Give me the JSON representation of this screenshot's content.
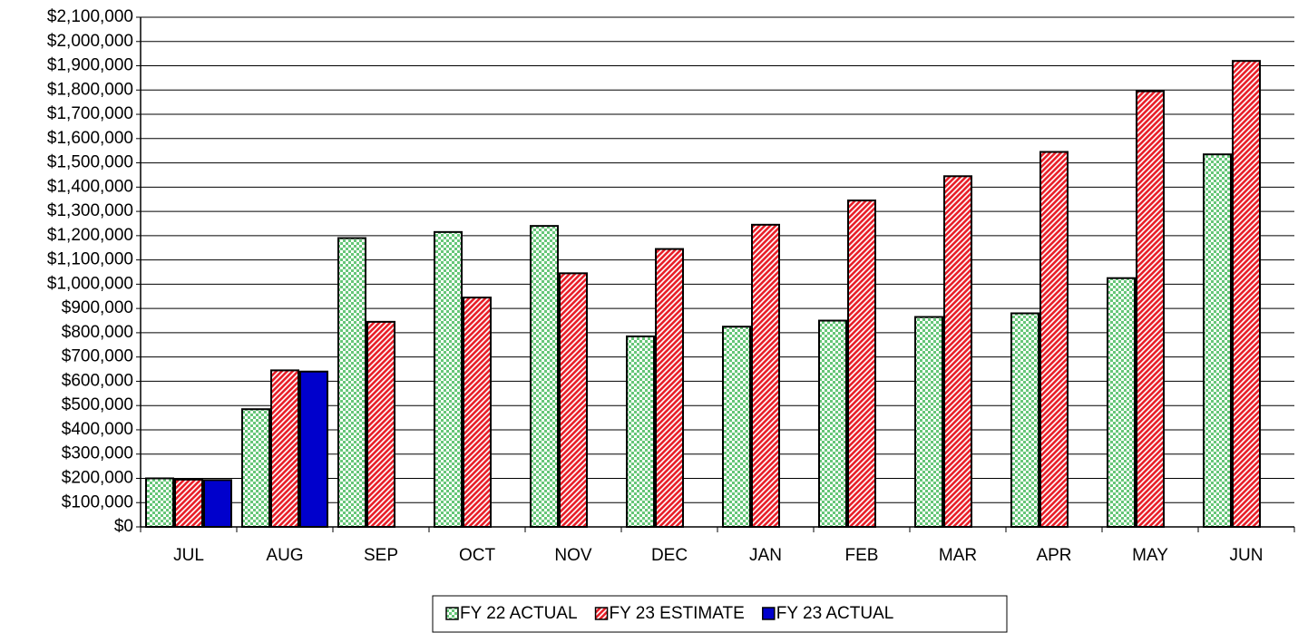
{
  "chart_data": {
    "type": "bar",
    "categories": [
      "JUL",
      "AUG",
      "SEP",
      "OCT",
      "NOV",
      "DEC",
      "JAN",
      "FEB",
      "MAR",
      "APR",
      "MAY",
      "JUN"
    ],
    "series": [
      {
        "name": "FY 22 ACTUAL",
        "color": "#33b34a",
        "pattern": "checker",
        "values": [
          200000,
          485000,
          1190000,
          1215000,
          1240000,
          785000,
          825000,
          850000,
          865000,
          880000,
          1025000,
          1535000
        ]
      },
      {
        "name": "FY 23 ESTIMATE",
        "color": "#e8202a",
        "pattern": "diagonal",
        "values": [
          195000,
          645000,
          845000,
          945000,
          1045000,
          1145000,
          1245000,
          1345000,
          1445000,
          1545000,
          1795000,
          1920000
        ]
      },
      {
        "name": "FY 23 ACTUAL",
        "color": "#0000cc",
        "pattern": "solid",
        "values": [
          193000,
          640000,
          null,
          null,
          null,
          null,
          null,
          null,
          null,
          null,
          null,
          null
        ]
      }
    ],
    "ylim": [
      0,
      2100000
    ],
    "yticks": [
      {
        "value": 0,
        "label": "$0"
      },
      {
        "value": 100000,
        "label": "$100,000"
      },
      {
        "value": 200000,
        "label": "$200,000"
      },
      {
        "value": 300000,
        "label": "$300,000"
      },
      {
        "value": 400000,
        "label": "$400,000"
      },
      {
        "value": 500000,
        "label": "$500,000"
      },
      {
        "value": 600000,
        "label": "$600,000"
      },
      {
        "value": 700000,
        "label": "$700,000"
      },
      {
        "value": 800000,
        "label": "$800,000"
      },
      {
        "value": 900000,
        "label": "$900,000"
      },
      {
        "value": 1000000,
        "label": "$1,000,000"
      },
      {
        "value": 1100000,
        "label": "$1,100,000"
      },
      {
        "value": 1200000,
        "label": "$1,200,000"
      },
      {
        "value": 1300000,
        "label": "$1,300,000"
      },
      {
        "value": 1400000,
        "label": "$1,400,000"
      },
      {
        "value": 1500000,
        "label": "$1,500,000"
      },
      {
        "value": 1600000,
        "label": "$1,600,000"
      },
      {
        "value": 1700000,
        "label": "$1,700,000"
      },
      {
        "value": 1800000,
        "label": "$1,800,000"
      },
      {
        "value": 1900000,
        "label": "$1,900,000"
      },
      {
        "value": 2000000,
        "label": "$2,000,000"
      },
      {
        "value": 2100000,
        "label": "$2,100,000"
      }
    ],
    "grid": true,
    "legend": "bottom"
  }
}
